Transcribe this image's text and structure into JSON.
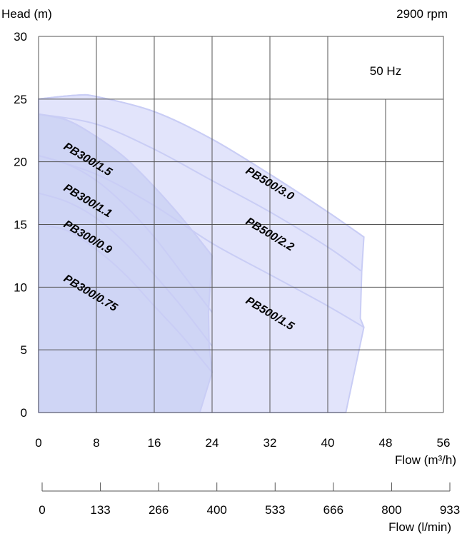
{
  "header": {
    "ylabel": "Head (m)",
    "speed": "2900 rpm",
    "frequency": "50 Hz"
  },
  "footer": {
    "flow_m3h_label": "Flow (m³/h)",
    "flow_lmin_label": "Flow (l/min)"
  },
  "colors": {
    "grid": "#555555",
    "fill": "#e2e4fb",
    "fill_overlap": "#cfd5f5",
    "curve_line": "#c9cdf5"
  },
  "chart_data": {
    "type": "line",
    "xlabel": "Flow (m³/h)",
    "ylabel": "Head (m)",
    "xlim": [
      0,
      56
    ],
    "ylim": [
      0,
      30
    ],
    "xticks": [
      "0",
      "8",
      "16",
      "24",
      "32",
      "40",
      "48",
      "56"
    ],
    "yticks": [
      "0",
      "5",
      "10",
      "15",
      "20",
      "25",
      "30"
    ],
    "secondary_axis": {
      "label": "Flow (l/min)",
      "ticks": [
        "0",
        "133",
        "266",
        "400",
        "533",
        "666",
        "800",
        "933"
      ]
    },
    "grid": true,
    "series": [
      {
        "name": "PB300/0.75",
        "x": [
          0,
          4,
          8,
          12,
          16,
          20,
          24
        ],
        "y": [
          15,
          14.5,
          13,
          11,
          8.5,
          6,
          3.2
        ]
      },
      {
        "name": "PB300/0.9",
        "x": [
          0,
          4,
          8,
          12,
          16,
          20,
          24
        ],
        "y": [
          17.5,
          16.8,
          15.5,
          13.5,
          11,
          8.3,
          5.3
        ]
      },
      {
        "name": "PB300/1.1",
        "x": [
          0,
          4,
          8,
          12,
          16,
          20,
          24
        ],
        "y": [
          20.5,
          19.8,
          18.5,
          16.5,
          14,
          11,
          8
        ]
      },
      {
        "name": "PB300/1.5",
        "x": [
          0,
          4,
          8,
          12,
          16,
          20,
          24
        ],
        "y": [
          23.8,
          23.3,
          22,
          20.3,
          18,
          15.4,
          12.5
        ]
      },
      {
        "name": "PB500/1.5",
        "x": [
          0,
          8,
          16,
          24,
          32,
          40,
          45
        ],
        "y": [
          20.5,
          19,
          16.5,
          13.5,
          11,
          8.5,
          6.8
        ]
      },
      {
        "name": "PB500/2.2",
        "x": [
          0,
          8,
          16,
          24,
          32,
          40,
          44.6
        ],
        "y": [
          23.8,
          23,
          21,
          18.5,
          16,
          13.2,
          11.3
        ]
      },
      {
        "name": "PB500/3.0",
        "x": [
          0,
          5,
          8,
          16,
          24,
          32,
          40,
          45
        ],
        "y": [
          25,
          25.3,
          25.2,
          24,
          21.8,
          19,
          16,
          14
        ]
      }
    ]
  }
}
